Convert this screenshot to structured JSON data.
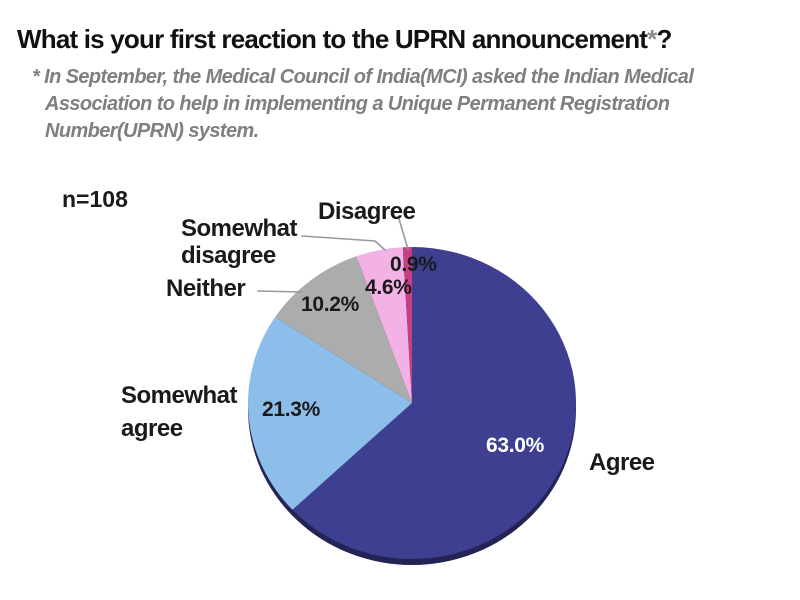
{
  "title": {
    "main": "What is your first reaction to the UPRN announcement",
    "asterisk": "*",
    "end": "?"
  },
  "footnote": {
    "lines": [
      "* In September, the Medical Council of India(MCI) asked the Indian Medical",
      "Association to help in implementing a Unique Permanent Registration",
      "Number(UPRN) system."
    ]
  },
  "sample_label": "n=108",
  "chart_data": {
    "type": "pie",
    "title": "What is your first reaction to the UPRN announcement*?",
    "footnote": "* In September, the Medical Council of India(MCI) asked the Indian Medical Association to help in implementing a Unique Permanent Registration Number(UPRN) system.",
    "sample_size": 108,
    "unit": "%",
    "start_angle_deg": 0,
    "direction": "clockwise",
    "legend_position": "callout-labels",
    "slices": [
      {
        "label": "Agree",
        "value": 63.0,
        "display": "63.0%",
        "color": "#3E3F90",
        "value_label_color": "#FFFFFF"
      },
      {
        "label": "Somewhat agree",
        "value": 21.3,
        "display": "21.3%",
        "color": "#8DBDE9",
        "value_label_color": "#1A1A1A"
      },
      {
        "label": "Neither",
        "value": 10.2,
        "display": "10.2%",
        "color": "#ACACAC",
        "value_label_color": "#1A1A1A"
      },
      {
        "label": "Somewhat disagree",
        "value": 4.6,
        "display": "4.6%",
        "color": "#F2B2E6",
        "value_label_color": "#1A1A1A"
      },
      {
        "label": "Disagree",
        "value": 0.9,
        "display": "0.9%",
        "color": "#C63F85",
        "value_label_color": "#1A1A1A"
      }
    ],
    "callout_labels": {
      "agree": "Agree",
      "somewhat_agree": "Somewhat\nagree",
      "neither": "Neither",
      "somewhat_disagree": "Somewhat\ndisagree",
      "disagree": "Disagree"
    },
    "rim_color": "#232355",
    "leader_line_color": "#999999"
  }
}
